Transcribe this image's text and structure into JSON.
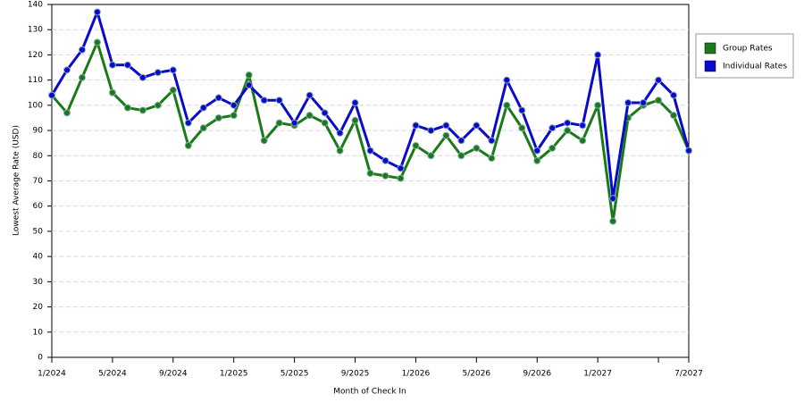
{
  "chart_data": {
    "type": "line",
    "x_label": "Month of Check In",
    "y_label": "Lowest Average Rate (USD)",
    "categories": [
      "1/2024",
      null,
      null,
      null,
      "5/2024",
      null,
      null,
      null,
      "9/2024",
      null,
      null,
      null,
      "1/2025",
      null,
      null,
      null,
      "5/2025",
      null,
      null,
      null,
      "9/2025",
      null,
      null,
      null,
      "1/2026",
      null,
      null,
      null,
      "5/2026",
      null,
      null,
      null,
      "9/2026",
      null,
      null,
      null,
      "1/2027",
      null,
      null,
      null,
      null,
      null,
      "7/2027"
    ],
    "tick_every": 4,
    "series": [
      {
        "name": "Group Rates",
        "color": "#1a7a1a",
        "values": [
          104,
          97,
          111,
          125,
          105,
          99,
          98,
          100,
          106,
          84,
          91,
          95,
          96,
          112,
          86,
          93,
          92,
          96,
          93,
          82,
          94,
          73,
          72,
          71,
          84,
          80,
          88,
          80,
          83,
          79,
          100,
          91,
          78,
          83,
          90,
          86,
          100,
          54,
          95,
          100,
          102,
          96,
          82
        ]
      },
      {
        "name": "Individual Rates",
        "color": "#0a0acc",
        "values": [
          104,
          114,
          122,
          137,
          116,
          116,
          111,
          113,
          114,
          93,
          99,
          103,
          100,
          108,
          102,
          102,
          93,
          104,
          97,
          89,
          101,
          82,
          78,
          75,
          92,
          90,
          92,
          86,
          92,
          86,
          110,
          98,
          82,
          91,
          93,
          92,
          120,
          63,
          101,
          101,
          110,
          104,
          82
        ]
      }
    ],
    "ylim": [
      0,
      140
    ],
    "yticks": [
      0,
      10,
      20,
      30,
      40,
      50,
      60,
      70,
      80,
      90,
      100,
      110,
      120,
      130,
      140
    ],
    "grid": true,
    "legend": "right"
  }
}
